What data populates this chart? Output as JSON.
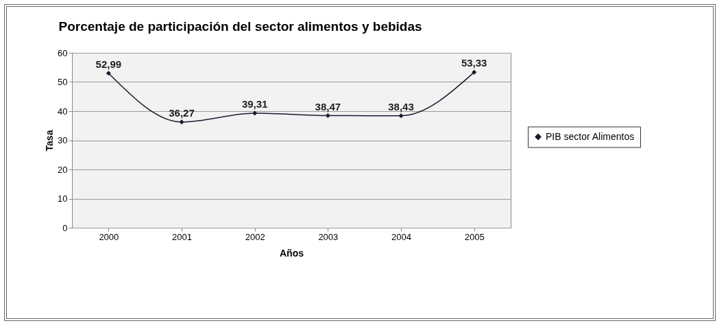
{
  "chart_data": {
    "type": "line",
    "title": "Porcentaje de participación del sector alimentos y bebidas",
    "xlabel": "Años",
    "ylabel": "Tasa",
    "categories": [
      "2000",
      "2001",
      "2002",
      "2003",
      "2004",
      "2005"
    ],
    "series": [
      {
        "name": "PIB sector Alimentos",
        "color": "#1a1a2e",
        "values": [
          52.99,
          36.27,
          39.31,
          38.47,
          38.43,
          53.33
        ],
        "value_labels": [
          "52,99",
          "36,27",
          "39,31",
          "38,47",
          "38,43",
          "53,33"
        ]
      }
    ],
    "ylim": [
      0,
      60
    ],
    "yticks": [
      0,
      10,
      20,
      30,
      40,
      50,
      60
    ],
    "grid": "y",
    "legend": "right",
    "marker": "diamond",
    "line_style": "solid"
  }
}
